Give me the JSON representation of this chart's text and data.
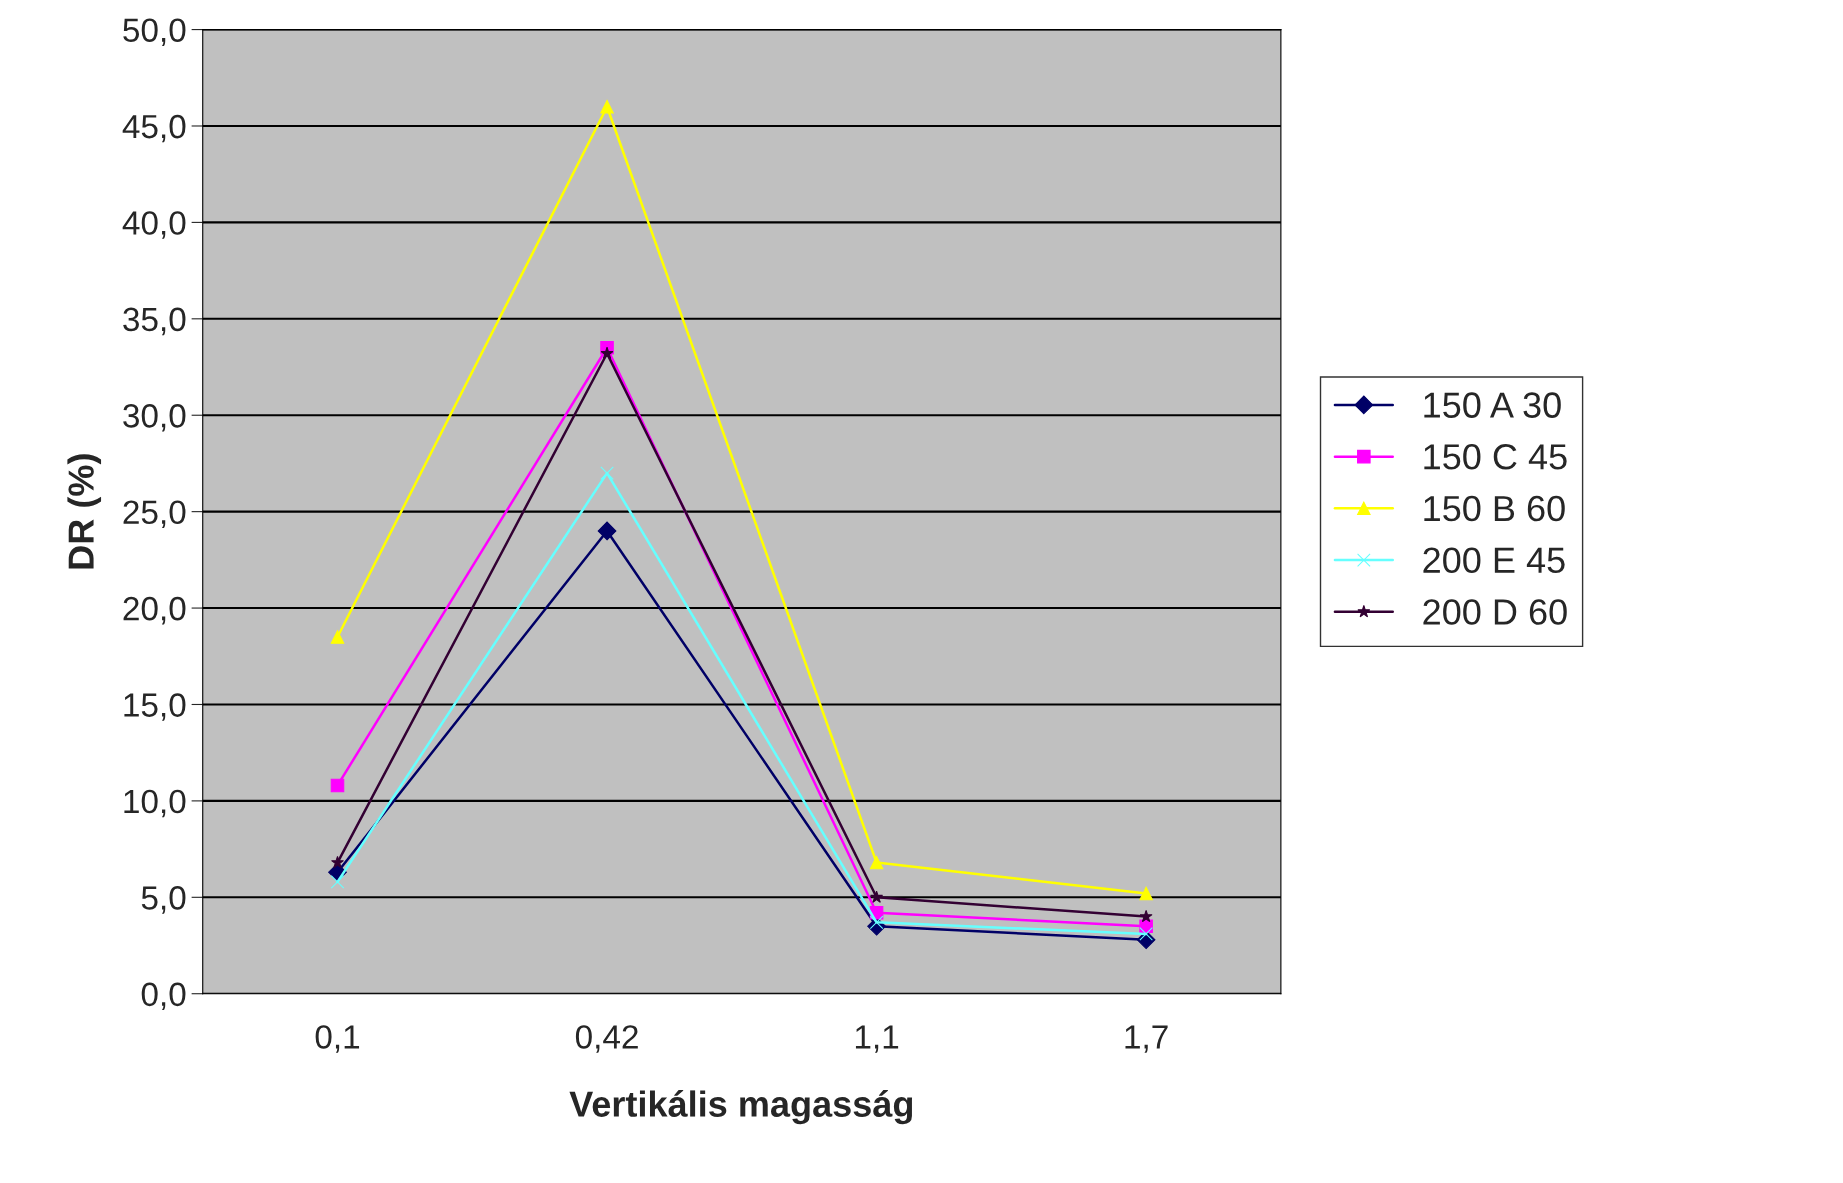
{
  "chart_data": {
    "type": "line",
    "xlabel": "Vertikális magasság",
    "ylabel": "DR (%)",
    "categories": [
      "0,1",
      "0,42",
      "1,1",
      "1,7"
    ],
    "series": [
      {
        "name": "150 A 30",
        "color": "#000066",
        "marker": "diamond",
        "values": [
          6.3,
          24.0,
          3.5,
          2.8
        ]
      },
      {
        "name": "150 C 45",
        "color": "#ff00ff",
        "marker": "square",
        "values": [
          10.8,
          33.5,
          4.2,
          3.5
        ]
      },
      {
        "name": "150 B 60",
        "color": "#ffff00",
        "marker": "triangle",
        "values": [
          18.5,
          46.0,
          6.8,
          5.2
        ]
      },
      {
        "name": "200 E 45",
        "color": "#66ffff",
        "marker": "cross",
        "values": [
          5.8,
          27.0,
          3.7,
          3.1
        ]
      },
      {
        "name": "200 D 60",
        "color": "#330033",
        "marker": "star",
        "values": [
          6.8,
          33.2,
          5.0,
          4.0
        ]
      }
    ],
    "ylim": [
      0,
      50
    ],
    "yticks": [
      {
        "value": 0,
        "label": "0,0"
      },
      {
        "value": 5,
        "label": "5,0"
      },
      {
        "value": 10,
        "label": "10,0"
      },
      {
        "value": 15,
        "label": "15,0"
      },
      {
        "value": 20,
        "label": "20,0"
      },
      {
        "value": 25,
        "label": "25,0"
      },
      {
        "value": 30,
        "label": "30,0"
      },
      {
        "value": 35,
        "label": "35,0"
      },
      {
        "value": 40,
        "label": "40,0"
      },
      {
        "value": 45,
        "label": "45,0"
      },
      {
        "value": 50,
        "label": "50,0"
      }
    ],
    "grid": "y",
    "legend": "right"
  }
}
